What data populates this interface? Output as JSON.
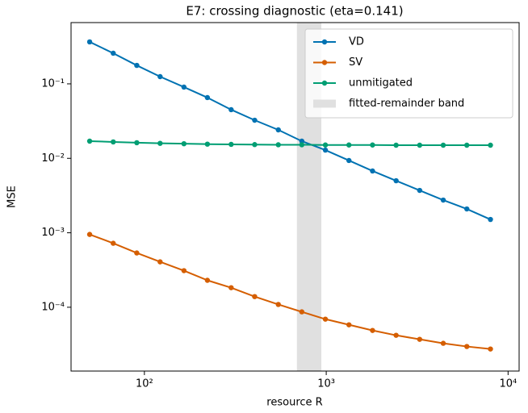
{
  "chart_data": {
    "type": "line",
    "title": "E7: crossing diagnostic (eta=0.141)",
    "x_label": "resource R",
    "y_label": "MSE",
    "log_x": true,
    "log_y": true,
    "xlim": [
      39.5,
      11500
    ],
    "ylim": [
      1.39e-05,
      0.665
    ],
    "xticks": [
      {
        "value": 100,
        "label": "10²"
      },
      {
        "value": 1000,
        "label": "10³"
      },
      {
        "value": 10000,
        "label": "10⁴"
      }
    ],
    "yticks": [
      {
        "value": 0.0001,
        "label": "10⁻⁴"
      },
      {
        "value": 0.001,
        "label": "10⁻³"
      },
      {
        "value": 0.01,
        "label": "10⁻²"
      },
      {
        "value": 0.1,
        "label": "10⁻¹"
      }
    ],
    "legend": "upper right",
    "x": [
      50,
      67.4,
      90.8,
      122,
      165,
      222,
      300,
      404,
      545,
      734,
      989,
      1333,
      1797,
      2422,
      3264,
      4400,
      5930,
      8000
    ],
    "series": [
      {
        "name": "VD",
        "color": "#0072b2",
        "values": [
          0.366,
          0.258,
          0.177,
          0.125,
          0.0905,
          0.0654,
          0.045,
          0.0325,
          0.0241,
          0.017,
          0.0129,
          0.00935,
          0.00676,
          0.005,
          0.00371,
          0.00275,
          0.00209,
          0.00151
        ]
      },
      {
        "name": "SV",
        "color": "#d55e00",
        "values": [
          0.00095,
          0.000723,
          0.000536,
          0.000407,
          0.00031,
          0.00023,
          0.000183,
          0.000139,
          0.000109,
          8.67e-05,
          6.92e-05,
          5.81e-05,
          4.88e-05,
          4.2e-05,
          3.71e-05,
          3.28e-05,
          2.97e-05,
          2.75e-05
        ]
      },
      {
        "name": "unmitigated",
        "color": "#009e73",
        "values": [
          0.017,
          0.0166,
          0.0162,
          0.0159,
          0.0157,
          0.0155,
          0.0154,
          0.0153,
          0.0152,
          0.0152,
          0.0151,
          0.0151,
          0.0151,
          0.015,
          0.015,
          0.015,
          0.015,
          0.015
        ]
      }
    ],
    "band": {
      "label": "fitted-remainder band",
      "range": [
        690,
        940
      ],
      "color": "#e0e0e0"
    }
  }
}
